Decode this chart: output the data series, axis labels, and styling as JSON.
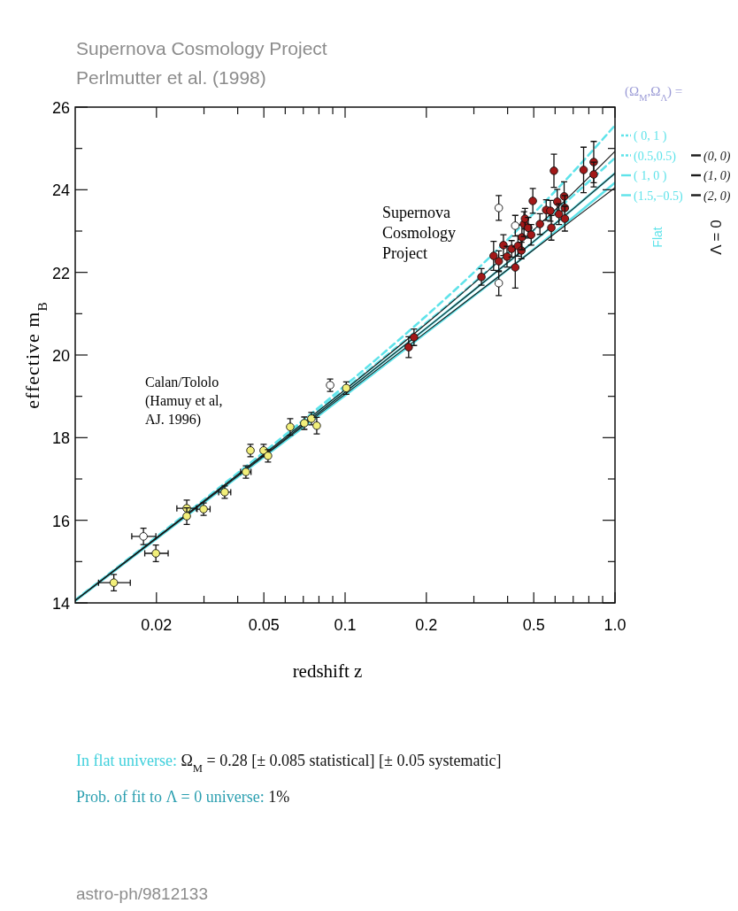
{
  "chart_data": {
    "type": "line",
    "title": "Supernova Cosmology Project",
    "subtitle": "Perlmutter et al. (1998)",
    "xlabel": "redshift  z",
    "ylabel": "effective m$_{B}$",
    "legend_title": "(Ω$_{M}$,Ω$_{Λ}$) =",
    "legend": "right",
    "log": "x",
    "xlim": [
      0.01,
      1.0
    ],
    "xticks": [
      {
        "value": 0.03,
        "label": null
      },
      {
        "value": 0.04,
        "label": null
      },
      {
        "value": 0.06,
        "label": null
      },
      {
        "value": 0.07,
        "label": null
      },
      {
        "value": 0.08,
        "label": null
      },
      {
        "value": 0.09,
        "label": null
      },
      {
        "value": 0.3,
        "label": null
      },
      {
        "value": 0.4,
        "label": null
      },
      {
        "value": 0.6,
        "label": null
      },
      {
        "value": 0.7,
        "label": null
      },
      {
        "value": 0.8,
        "label": null
      },
      {
        "value": 0.9,
        "label": null
      },
      0.02,
      0.05,
      0.1,
      0.2,
      0.5,
      {
        "value": 1.0,
        "label": "1.0"
      }
    ],
    "ylim": [
      14,
      26
    ],
    "yticks": [
      14,
      16,
      18,
      20,
      22,
      24,
      26,
      {
        "value": 15,
        "label": null
      },
      {
        "value": 17,
        "label": null
      },
      {
        "value": 19,
        "label": null
      },
      {
        "value": 21,
        "label": null
      },
      {
        "value": 23,
        "label": null
      },
      {
        "value": 25,
        "label": null
      }
    ],
    "x": [
      0.01,
      0.02,
      0.05,
      0.1,
      0.2,
      0.3,
      0.5,
      0.7,
      1.0
    ],
    "series": [
      {
        "name": "( 0,   1 )",
        "color": "#5fe3ea",
        "line_style": "dashed",
        "values": [
          14.07,
          15.6,
          17.65,
          19.26,
          20.95,
          22.0,
          23.43,
          24.43,
          25.56
        ]
      },
      {
        "name": "(0.5,0.5)",
        "color": "#5fe3ea",
        "line_style": "dashed",
        "values": [
          14.06,
          15.58,
          17.61,
          19.18,
          20.78,
          21.75,
          23.02,
          23.86,
          24.77
        ]
      },
      {
        "name": "( 1,    0 )",
        "color": "#5fe3ea",
        "line_style": "solid",
        "values": [
          14.06,
          15.57,
          17.57,
          19.1,
          20.65,
          21.57,
          22.75,
          23.54,
          24.4
        ]
      },
      {
        "name": "(1.5,−0.5)",
        "color": "#5fe3ea",
        "line_style": "solid",
        "values": [
          14.05,
          15.55,
          17.53,
          19.02,
          20.54,
          21.43,
          22.56,
          23.33,
          24.17
        ]
      },
      {
        "name": "(0, 0)",
        "color": "#1a1a1a",
        "line_style": "solid",
        "values": [
          14.06,
          15.58,
          17.6,
          19.16,
          20.76,
          21.74,
          23.03,
          23.93,
          24.93
        ]
      },
      {
        "name": "(1, 0)",
        "color": "#1a1a1a",
        "line_style": "solid",
        "values": [
          14.06,
          15.57,
          17.57,
          19.1,
          20.65,
          21.57,
          22.75,
          23.54,
          24.4
        ]
      },
      {
        "name": "(2, 0)",
        "color": "#1a1a1a",
        "line_style": "solid",
        "values": [
          14.05,
          15.56,
          17.55,
          19.05,
          20.56,
          21.44,
          22.55,
          23.28,
          24.05
        ]
      },
      {
        "type": "scatter",
        "marker": "circle",
        "color": "#f2ef7a",
        "x": [
          0.0139,
          0.0199,
          0.0259,
          0.0259,
          0.0299,
          0.0358,
          0.0429,
          0.0446,
          0.0499,
          0.0518,
          0.0626,
          0.0706,
          0.075,
          0.0785,
          0.101
        ],
        "values": [
          14.49,
          15.2,
          16.29,
          16.1,
          16.27,
          16.68,
          17.17,
          17.69,
          17.69,
          17.56,
          18.26,
          18.35,
          18.46,
          18.29,
          19.2
        ],
        "errors": [
          0.2,
          0.2,
          0.2,
          0.2,
          0.15,
          0.15,
          0.15,
          0.15,
          0.15,
          0.15,
          0.2,
          0.15,
          0.15,
          0.2,
          0.15
        ],
        "xerrors": [
          [
            0.0122,
            0.016
          ],
          [
            0.0181,
            0.0221
          ],
          [
            0.0238,
            0.0281
          ],
          null,
          [
            0.0283,
            0.0316
          ],
          [
            0.034,
            0.0377
          ],
          [
            0.041,
            0.0448
          ],
          null,
          null,
          null,
          null,
          null,
          null,
          null,
          null
        ]
      },
      {
        "type": "scatter",
        "marker": "circle",
        "color": "#ffffff",
        "x": [
          0.0179,
          0.088,
          0.371,
          0.427,
          0.371
        ],
        "values": [
          15.61,
          19.27,
          23.56,
          23.13,
          21.74
        ],
        "errors": [
          0.2,
          0.15,
          0.3,
          0.25,
          0.3
        ],
        "xerrors": [
          [
            0.0162,
            0.0199
          ],
          null,
          null,
          null,
          null
        ]
      },
      {
        "type": "scatter",
        "marker": "circle",
        "color": "#a31818",
        "x": [
          0.172,
          0.18,
          0.32,
          0.355,
          0.371,
          0.386,
          0.398,
          0.414,
          0.427,
          0.437,
          0.45,
          0.452,
          0.46,
          0.464,
          0.477,
          0.489,
          0.496,
          0.527,
          0.556,
          0.576,
          0.581,
          0.594,
          0.611,
          0.62,
          0.648,
          0.652,
          0.652,
          0.765,
          0.834,
          0.834
        ],
        "values": [
          20.19,
          20.43,
          21.89,
          22.4,
          22.27,
          22.66,
          22.38,
          22.57,
          22.12,
          22.64,
          22.53,
          22.85,
          23.17,
          23.3,
          23.08,
          22.91,
          23.73,
          23.17,
          23.51,
          23.49,
          23.08,
          24.46,
          23.71,
          23.41,
          23.84,
          23.56,
          23.3,
          24.48,
          24.67,
          24.37
        ],
        "errors": [
          0.25,
          0.2,
          0.2,
          0.35,
          0.25,
          0.25,
          0.25,
          0.2,
          0.5,
          0.25,
          0.2,
          0.3,
          0.3,
          0.25,
          0.25,
          0.25,
          0.3,
          0.25,
          0.25,
          0.25,
          0.3,
          0.4,
          0.3,
          0.25,
          0.35,
          0.3,
          0.3,
          0.55,
          0.5,
          0.3
        ]
      }
    ],
    "annotations": [
      "Supernova\nCosmology\nProject",
      "Calan/Tololo\n(Hamuy et al,\nAJ. 1996)",
      "Flat",
      "Λ = 0",
      "In flat universe:  Ω$_{M}$ = 0.28 [± 0.085 statistical] [± 0.05 systematic]",
      "Prob. of fit to Λ = 0 universe:  1%",
      "astro-ph/9812133"
    ]
  }
}
